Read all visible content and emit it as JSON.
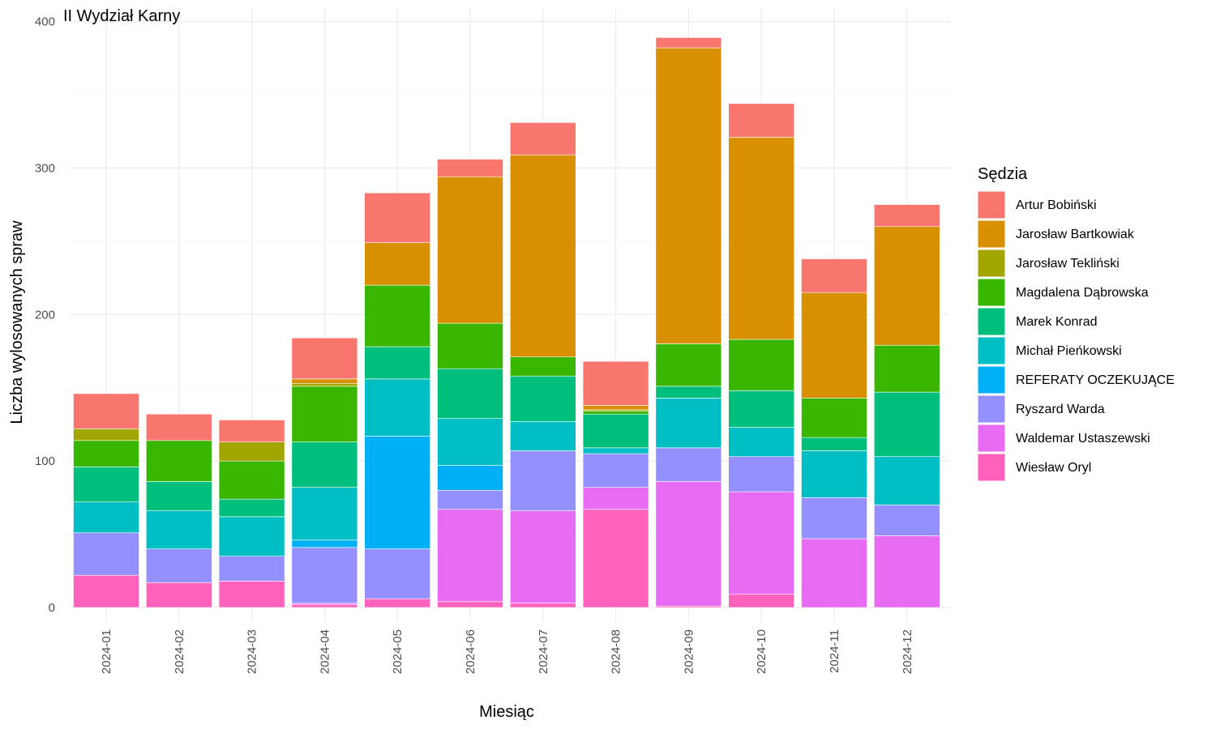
{
  "chart_data": {
    "type": "bar",
    "stacked": true,
    "title": "II Wydział Karny",
    "xlabel": "Miesiąc",
    "ylabel": "Liczba wylosowanych spraw",
    "ylim": [
      0,
      400
    ],
    "yticks": [
      0,
      100,
      200,
      300,
      400
    ],
    "grid": true,
    "legend_title": "Sędzia",
    "legend_position": "right",
    "categories": [
      "2024-01",
      "2024-02",
      "2024-03",
      "2024-04",
      "2024-05",
      "2024-06",
      "2024-07",
      "2024-08",
      "2024-09",
      "2024-10",
      "2024-11",
      "2024-12"
    ],
    "series": [
      {
        "name": "Artur Bobiński",
        "color": "#F8766D",
        "values": [
          24,
          18,
          15,
          28,
          34,
          12,
          22,
          30,
          7,
          23,
          23,
          15
        ]
      },
      {
        "name": "Jarosław Bartkowiak",
        "color": "#D89000",
        "values": [
          0,
          0,
          0,
          3,
          29,
          100,
          138,
          3,
          202,
          138,
          72,
          81
        ]
      },
      {
        "name": "Jarosław Tekliński",
        "color": "#A3A500",
        "values": [
          8,
          0,
          13,
          2,
          0,
          0,
          0,
          1,
          0,
          0,
          0,
          0
        ]
      },
      {
        "name": "Magdalena Dąbrowska",
        "color": "#39B600",
        "values": [
          18,
          28,
          26,
          38,
          42,
          31,
          13,
          2,
          29,
          35,
          27,
          32
        ]
      },
      {
        "name": "Marek Konrad",
        "color": "#00BF7D",
        "values": [
          24,
          20,
          12,
          31,
          22,
          34,
          31,
          23,
          8,
          25,
          9,
          44
        ]
      },
      {
        "name": "Michał Pieńkowski",
        "color": "#00BFC4",
        "values": [
          21,
          26,
          27,
          36,
          39,
          32,
          20,
          4,
          34,
          20,
          32,
          33
        ]
      },
      {
        "name": "REFERATY OCZEKUJĄCE",
        "color": "#00B0F6",
        "values": [
          0,
          0,
          0,
          5,
          77,
          17,
          0,
          0,
          0,
          0,
          0,
          0
        ]
      },
      {
        "name": "Ryszard Warda",
        "color": "#9590FF",
        "values": [
          29,
          23,
          17,
          38,
          34,
          13,
          41,
          23,
          23,
          24,
          28,
          21
        ]
      },
      {
        "name": "Waldemar Ustaszewski",
        "color": "#E76BF3",
        "values": [
          0,
          0,
          0,
          1,
          0,
          63,
          63,
          15,
          85,
          70,
          47,
          49
        ]
      },
      {
        "name": "Wiesław Oryl",
        "color": "#FF62BC",
        "values": [
          22,
          17,
          18,
          2,
          6,
          4,
          3,
          67,
          1,
          9,
          0,
          0
        ]
      }
    ]
  }
}
